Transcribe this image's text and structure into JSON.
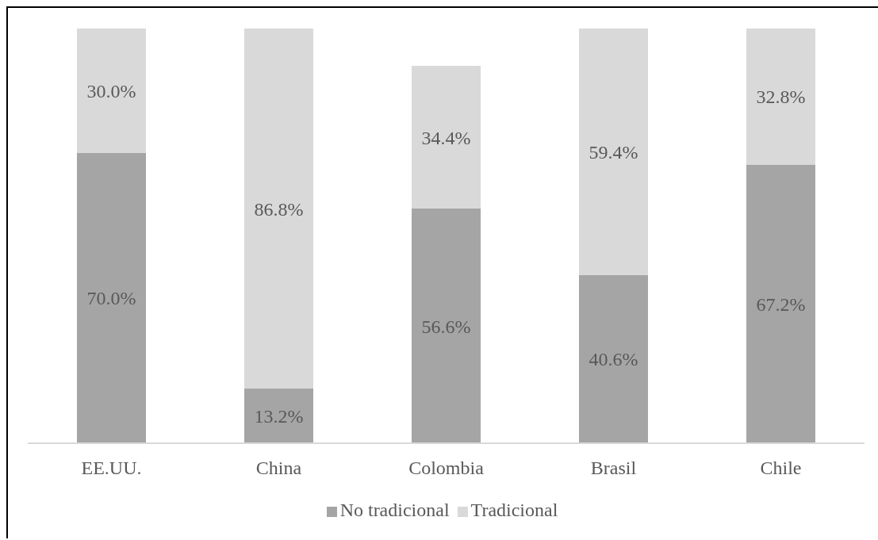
{
  "chart_data": {
    "type": "bar",
    "stacked": true,
    "categories": [
      "EE.UU.",
      "China",
      "Colombia",
      "Brasil",
      "Chile"
    ],
    "series": [
      {
        "name": "No tradicional",
        "color": "#a5a5a5",
        "values": [
          70.0,
          13.2,
          56.6,
          40.6,
          67.2
        ],
        "value_labels": [
          "70.0%",
          "13.2%",
          "56.6%",
          "40.6%",
          "67.2%"
        ]
      },
      {
        "name": "Tradicional",
        "color": "#d9d9d9",
        "values": [
          30.0,
          86.8,
          34.4,
          59.4,
          32.8
        ],
        "value_labels": [
          "30.0%",
          "86.8%",
          "34.4%",
          "59.4%",
          "32.8%"
        ]
      }
    ],
    "legend": "bottom",
    "tick_labels": "x"
  }
}
